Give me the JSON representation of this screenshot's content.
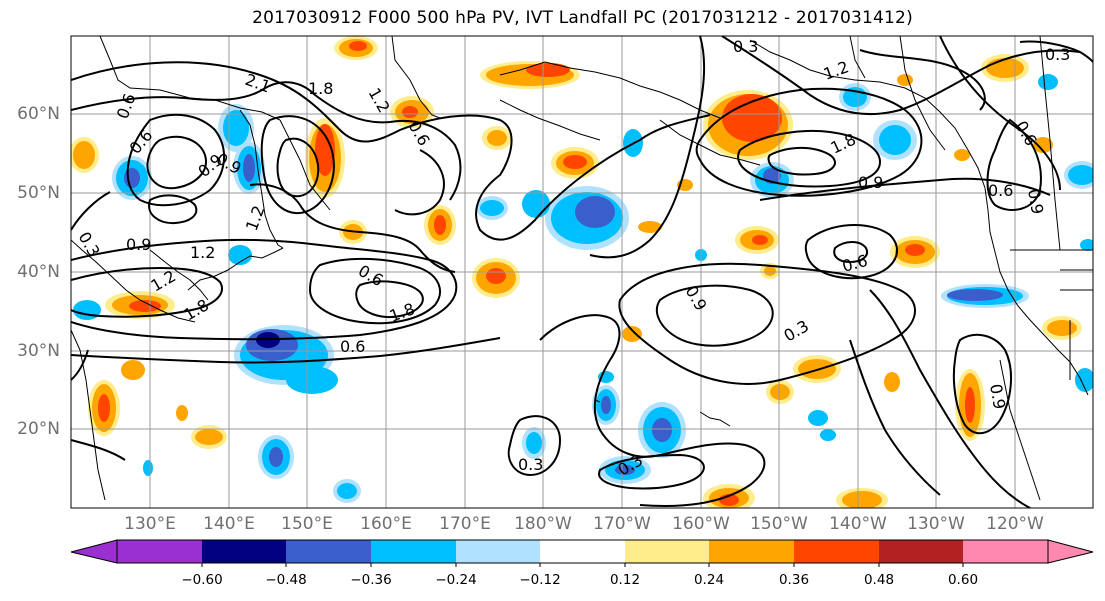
{
  "title": "2017030912 F000 500 hPa PV, IVT Landfall PC (2017031212 - 2017031412)",
  "lat_labels": [
    "60°N",
    "50°N",
    "40°N",
    "30°N",
    "20°N"
  ],
  "lon_labels": [
    "130°E",
    "140°E",
    "150°E",
    "160°E",
    "170°E",
    "180°W",
    "170°W",
    "160°W",
    "150°W",
    "140°W",
    "130°W",
    "120°W"
  ],
  "contour_labels": [
    "0.3",
    "2.1",
    "1.8",
    "1.2",
    "0.6",
    "0.3",
    "1.8",
    "1.2",
    "0.9",
    "0.6",
    "0.9",
    "1.2",
    "0.9",
    "1.2",
    "0.6",
    "1.8",
    "0.6",
    "0.3",
    "0.9",
    "0.3",
    "0.3",
    "0.6",
    "0.9",
    "0.6",
    "0.9",
    "0.3",
    "1.2",
    "1.8",
    "0.9",
    "0.6",
    "0.6"
  ],
  "colorbar": {
    "ticks": [
      "−0.60",
      "−0.48",
      "−0.36",
      "−0.24",
      "−0.12",
      "0.12",
      "0.24",
      "0.36",
      "0.48",
      "0.60"
    ],
    "colors": [
      "#9b30d0",
      "#000080",
      "#3a5fcd",
      "#00bfff",
      "#b0e2ff",
      "#ffffff",
      "#ffec8b",
      "#ffa500",
      "#ff4500",
      "#b22222",
      "#ff88b0"
    ]
  },
  "fill_colors": {
    "neg_light": "#b0e2ff",
    "neg_mid": "#00bfff",
    "neg_strong": "#3a5fcd",
    "neg_max": "#000080",
    "pos_light": "#ffec8b",
    "pos_mid": "#ffa500",
    "pos_strong": "#ff4500",
    "pos_max": "#b22222"
  }
}
